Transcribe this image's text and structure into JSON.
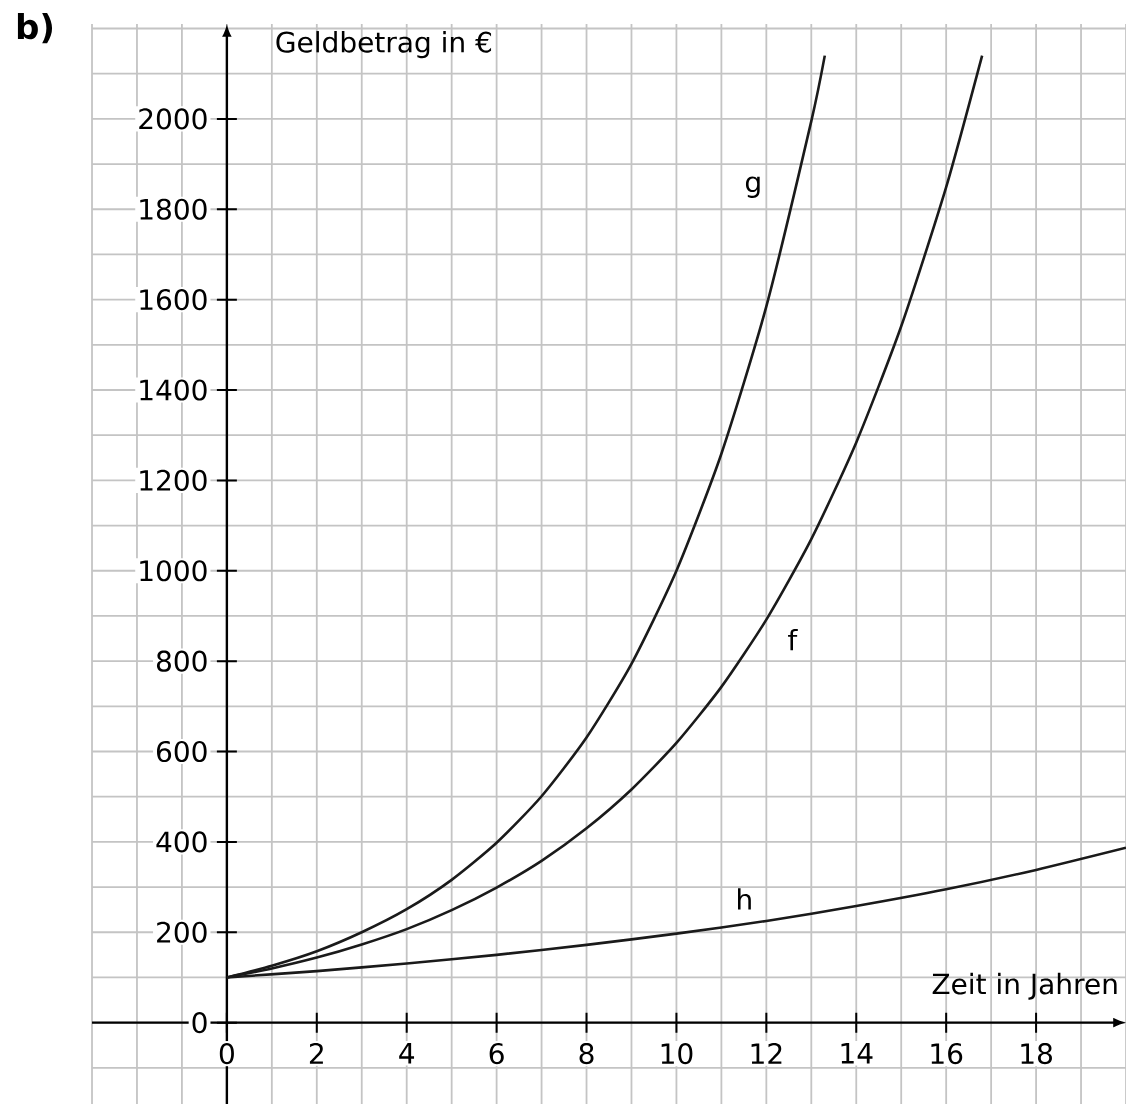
{
  "chart_data": {
    "type": "line",
    "title": "b)",
    "xlabel": "Zeit in Jahren",
    "ylabel": "Geldbetrag in €",
    "series": [
      {
        "name": "g",
        "color": "#1a1a1a",
        "x": [
          0,
          1,
          2,
          3,
          4,
          5,
          6,
          7,
          8,
          9,
          10,
          11,
          12,
          13,
          13.3
        ],
        "values": [
          100,
          126,
          158,
          200,
          251,
          316,
          398,
          501,
          631,
          794,
          1000,
          1259,
          1585,
          1995,
          2140
        ]
      },
      {
        "name": "f",
        "color": "#1a1a1a",
        "x": [
          0,
          1,
          2,
          3,
          4,
          5,
          6,
          7,
          8,
          9,
          10,
          11,
          12,
          13,
          14,
          15,
          16,
          16.8
        ],
        "values": [
          100,
          120,
          144,
          173,
          207,
          249,
          299,
          358,
          430,
          516,
          619,
          743,
          892,
          1070,
          1284,
          1541,
          1849,
          2140
        ]
      },
      {
        "name": "h",
        "color": "#1a1a1a",
        "x": [
          0,
          2,
          4,
          6,
          8,
          10,
          12,
          14,
          16,
          18,
          20
        ],
        "values": [
          100,
          114,
          131,
          150,
          172,
          197,
          225,
          258,
          295,
          338,
          387
        ]
      }
    ],
    "xlim": [
      -3,
      20
    ],
    "ylim": [
      -180,
      2210
    ],
    "xticks": [
      0,
      2,
      4,
      6,
      8,
      10,
      12,
      14,
      16,
      18
    ],
    "yticks": [
      0,
      200,
      400,
      600,
      800,
      1000,
      1200,
      1400,
      1600,
      1800,
      2000
    ],
    "grid": true,
    "marker": "none",
    "line_style": "solid"
  }
}
